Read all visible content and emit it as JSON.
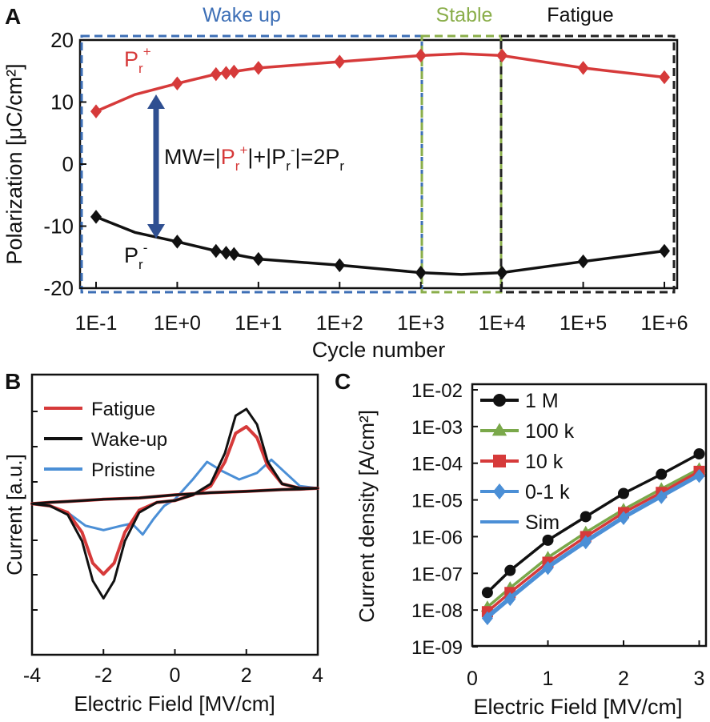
{
  "colors": {
    "red": "#d63a3a",
    "black": "#111111",
    "blue": "#4b8fd6",
    "green": "#7aa84a",
    "arrow": "#2f4f91",
    "wake_box": "#3d6fb6",
    "stable_box": "#8aae4a",
    "fatigue_box": "#222222"
  },
  "panelA": {
    "label": "A",
    "regions": {
      "wake": "Wake up",
      "stable": "Stable",
      "fatigue": "Fatigue"
    },
    "pr_plus": {
      "base": "P",
      "sub": "r",
      "sup": "+"
    },
    "pr_minus": {
      "base": "P",
      "sub": "r",
      "sup": "-"
    },
    "mw": {
      "prefix": "MW=|",
      "p1": "P",
      "s1": "r",
      "u1": "+",
      "mid": "|+|",
      "p2": "P",
      "s2": "r",
      "u2": "-",
      "suffix": "|=2P",
      "s3": "r"
    }
  },
  "panelB": {
    "label": "B"
  },
  "panelC": {
    "label": "C"
  },
  "chart_data": [
    {
      "type": "line",
      "xlabel": "Cycle number",
      "ylabel": "Polarization [μC/cm²]",
      "xscale": "log",
      "xlim": [
        0.1,
        1000000
      ],
      "ylim": [
        -20,
        20
      ],
      "xticks": [
        "1E-1",
        "1E+0",
        "1E+1",
        "1E+2",
        "1E+3",
        "1E+4",
        "1E+5",
        "1E+6"
      ],
      "yticks": [
        "20",
        "10",
        "0",
        "-10",
        "-20"
      ],
      "series": [
        {
          "name": "Pr+",
          "x": [
            0.1,
            1,
            3,
            4,
            5,
            10,
            100,
            1000,
            10000,
            100000,
            1000000
          ],
          "y": [
            8.5,
            13,
            14.5,
            14.7,
            14.9,
            15.5,
            16.5,
            17.5,
            17.5,
            15.5,
            14
          ],
          "curve": [
            [
              0.1,
              8.5
            ],
            [
              0.3,
              11.2
            ],
            [
              1,
              13
            ],
            [
              3,
              14.5
            ],
            [
              10,
              15.5
            ],
            [
              100,
              16.5
            ],
            [
              1000,
              17.5
            ],
            [
              3162,
              17.8
            ],
            [
              10000,
              17.5
            ],
            [
              100000,
              15.5
            ],
            [
              1000000,
              14
            ]
          ]
        },
        {
          "name": "Pr-",
          "x": [
            0.1,
            1,
            3,
            4,
            5,
            10,
            100,
            1000,
            10000,
            100000,
            1000000
          ],
          "y": [
            -8.5,
            -12.5,
            -14,
            -14.3,
            -14.5,
            -15.3,
            -16.3,
            -17.5,
            -17.5,
            -15.7,
            -14
          ],
          "curve": [
            [
              0.1,
              -8.5
            ],
            [
              0.3,
              -11
            ],
            [
              1,
              -12.5
            ],
            [
              3,
              -14
            ],
            [
              10,
              -15.3
            ],
            [
              100,
              -16.3
            ],
            [
              1000,
              -17.5
            ],
            [
              3162,
              -17.8
            ],
            [
              10000,
              -17.5
            ],
            [
              100000,
              -15.7
            ],
            [
              1000000,
              -14
            ]
          ]
        }
      ],
      "regions": [
        {
          "name": "Wake up",
          "x": [
            0.1,
            1000
          ]
        },
        {
          "name": "Stable",
          "x": [
            1000,
            10000
          ]
        },
        {
          "name": "Fatigue",
          "x": [
            10000,
            1000000
          ]
        }
      ],
      "annotation": "MW=|Pr+|+|Pr-|=2Pr"
    },
    {
      "type": "line",
      "xlabel": "Electric Field [MV/cm]",
      "ylabel": "Current [a.u.]",
      "xlim": [
        -4,
        4
      ],
      "xticks": [
        "-4",
        "-2",
        "0",
        "2",
        "4"
      ],
      "legend": [
        "Fatigue",
        "Wake-up",
        "Pristine"
      ],
      "legend_position": "top-left",
      "series": [
        {
          "name": "Fatigue",
          "x": [
            -4,
            -3.5,
            -3,
            -2.6,
            -2.3,
            -2,
            -1.7,
            -1.4,
            -1,
            -0.5,
            0,
            0.5,
            1,
            1.4,
            1.7,
            2,
            2.3,
            2.6,
            3,
            3.5,
            4,
            3.5,
            3,
            2.5,
            2,
            1,
            0,
            -1,
            -2,
            -3,
            -3.5,
            -4
          ],
          "y": [
            -0.15,
            -0.2,
            -0.35,
            -0.8,
            -1.5,
            -1.75,
            -1.5,
            -0.8,
            -0.3,
            -0.12,
            -0.08,
            0.05,
            0.25,
            0.8,
            1.45,
            1.6,
            1.35,
            0.7,
            0.3,
            0.2,
            0.2,
            0.18,
            0.17,
            0.15,
            0.13,
            0.1,
            0.05,
            -0.02,
            -0.05,
            -0.1,
            -0.12,
            -0.15
          ]
        },
        {
          "name": "Wake-up",
          "x": [
            -4,
            -3.5,
            -3,
            -2.6,
            -2.3,
            -2,
            -1.7,
            -1.4,
            -1,
            -0.5,
            0,
            0.5,
            1,
            1.4,
            1.7,
            2,
            2.3,
            2.6,
            3,
            3.5,
            4,
            3.5,
            3,
            2.5,
            2,
            1,
            0,
            -1,
            -2,
            -3,
            -3.5,
            -4
          ],
          "y": [
            -0.15,
            -0.2,
            -0.4,
            -1,
            -1.9,
            -2.3,
            -1.9,
            -1,
            -0.35,
            -0.12,
            -0.08,
            0.05,
            0.3,
            1,
            1.85,
            2,
            1.65,
            0.8,
            0.3,
            0.2,
            0.2,
            0.18,
            0.17,
            0.15,
            0.13,
            0.1,
            0.05,
            -0.02,
            -0.05,
            -0.1,
            -0.12,
            -0.15
          ]
        },
        {
          "name": "Pristine",
          "x": [
            -4,
            -3.5,
            -3,
            -2.5,
            -2,
            -1.5,
            -1.2,
            -0.9,
            -0.6,
            -0.3,
            0,
            0.5,
            0.9,
            1.3,
            1.8,
            2.3,
            2.7,
            3.1,
            3.5,
            4,
            3,
            2,
            1,
            0,
            -1,
            -2,
            -3,
            -4
          ],
          "y": [
            -0.15,
            -0.2,
            -0.35,
            -0.65,
            -0.75,
            -0.65,
            -0.6,
            -0.85,
            -0.5,
            -0.2,
            -0.05,
            0.4,
            0.8,
            0.6,
            0.4,
            0.55,
            0.85,
            0.55,
            0.25,
            0.2,
            0.17,
            0.13,
            0.1,
            0.05,
            -0.02,
            -0.05,
            -0.1,
            -0.15
          ]
        }
      ]
    },
    {
      "type": "line",
      "xlabel": "Electric Field [MV/cm]",
      "ylabel": "Current density [A/cm²]",
      "yscale": "log",
      "xlim": [
        0,
        3
      ],
      "ylim": [
        1e-09,
        0.01
      ],
      "xticks": [
        "0",
        "1",
        "2",
        "3"
      ],
      "yticks": [
        "1E-02",
        "1E-03",
        "1E-04",
        "1E-05",
        "1E-06",
        "1E-07",
        "1E-08",
        "1E-09"
      ],
      "legend": [
        "1 M",
        "100 k",
        "10 k",
        "0-1 k",
        "Sim"
      ],
      "legend_position": "top-left",
      "series": [
        {
          "name": "1 M",
          "x": [
            0.2,
            0.5,
            1,
            1.5,
            2,
            2.5,
            3
          ],
          "y": [
            3e-08,
            1.2e-07,
            8e-07,
            3.5e-06,
            1.5e-05,
            5e-05,
            0.00018
          ]
        },
        {
          "name": "100 k",
          "x": [
            0.2,
            0.5,
            1,
            1.5,
            2,
            2.5,
            3
          ],
          "y": [
            1.2e-08,
            4e-08,
            2.7e-07,
            1.3e-06,
            5.5e-06,
            2e-05,
            7e-05
          ]
        },
        {
          "name": "10 k",
          "x": [
            0.2,
            0.5,
            1,
            1.5,
            2,
            2.5,
            3
          ],
          "y": [
            9e-09,
            3e-08,
            2e-07,
            1e-06,
            4.5e-06,
            1.6e-05,
            6e-05
          ]
        },
        {
          "name": "0-1 k",
          "x": [
            0.2,
            0.5,
            1,
            1.5,
            2,
            2.5,
            3
          ],
          "y": [
            6e-09,
            2e-08,
            1.4e-07,
            7e-07,
            3.2e-06,
            1.2e-05,
            4.5e-05
          ]
        },
        {
          "name": "Sim",
          "x": [
            0.2,
            0.5,
            1,
            1.5,
            2,
            2.5,
            3
          ],
          "y": [
            7e-09,
            2.3e-08,
            1.6e-07,
            8e-07,
            3.6e-06,
            1.35e-05,
            5e-05
          ]
        }
      ]
    }
  ]
}
